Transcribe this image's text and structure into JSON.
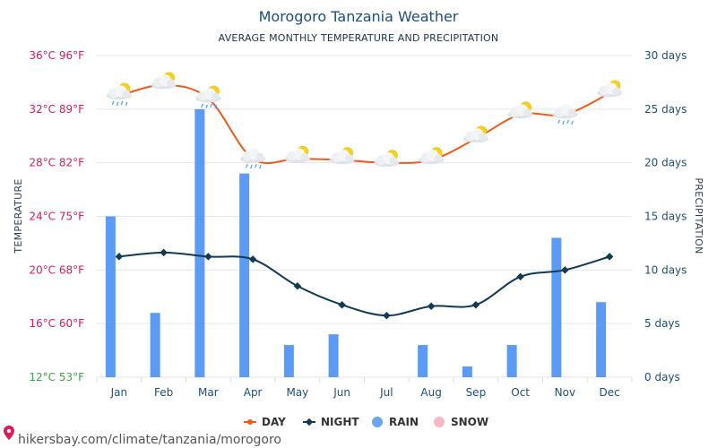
{
  "chart_data": {
    "type": "bar+line",
    "title": "Morogoro Tanzania Weather",
    "subtitle": "AVERAGE MONTHLY TEMPERATURE AND PRECIPITATION",
    "ylabel_left": "TEMPERATURE",
    "ylabel_right": "PRECIPITATION",
    "categories": [
      "Jan",
      "Feb",
      "Mar",
      "Apr",
      "May",
      "Jun",
      "Jul",
      "Aug",
      "Sep",
      "Oct",
      "Nov",
      "Dec"
    ],
    "y_left_ticks": [
      {
        "value": 36,
        "label": "36°C 96°F",
        "color": "#e0195a"
      },
      {
        "value": 32,
        "label": "32°C 89°F",
        "color": "#e0195a"
      },
      {
        "value": 28,
        "label": "28°C 82°F",
        "color": "#e0195a"
      },
      {
        "value": 24,
        "label": "24°C 75°F",
        "color": "#e0195a"
      },
      {
        "value": 20,
        "label": "20°C 68°F",
        "color": "#e0195a"
      },
      {
        "value": 16,
        "label": "16°C 60°F",
        "color": "#e0195a"
      },
      {
        "value": 12,
        "label": "12°C 53°F",
        "color": "#3aa845"
      }
    ],
    "y_right_ticks": [
      {
        "value": 30,
        "label": "30 days"
      },
      {
        "value": 25,
        "label": "25 days"
      },
      {
        "value": 20,
        "label": "20 days"
      },
      {
        "value": 15,
        "label": "15 days"
      },
      {
        "value": 10,
        "label": "10 days"
      },
      {
        "value": 5,
        "label": "5 days"
      },
      {
        "value": 0,
        "label": "0 days"
      }
    ],
    "ylim_left": [
      12,
      36
    ],
    "ylim_right": [
      0,
      30
    ],
    "series": [
      {
        "name": "DAY",
        "kind": "line",
        "color": "#f05a1a",
        "values": [
          33.0,
          33.8,
          32.8,
          28.3,
          28.3,
          28.2,
          28.0,
          28.2,
          29.8,
          31.6,
          31.6,
          33.2
        ]
      },
      {
        "name": "NIGHT",
        "kind": "line",
        "color": "#123a52",
        "values": [
          21.0,
          21.3,
          21.0,
          20.8,
          18.8,
          17.4,
          16.6,
          17.3,
          17.4,
          19.5,
          20.0,
          21.0
        ]
      },
      {
        "name": "RAIN",
        "kind": "bar",
        "color": "#5b9bf5",
        "values": [
          15,
          6,
          25,
          19,
          3,
          4,
          0,
          3,
          1,
          3,
          13,
          7
        ]
      },
      {
        "name": "SNOW",
        "kind": "bar",
        "color": "#f7b3c2",
        "values": [
          0,
          0,
          0,
          0,
          0,
          0,
          0,
          0,
          0,
          0,
          0,
          0
        ]
      }
    ],
    "weather_icons": [
      "sun-cloud-rain-icon",
      "sun-cloud-icon",
      "sun-cloud-rain-icon",
      "cloud-rain-icon",
      "sun-cloud-icon",
      "sun-cloud-icon",
      "sun-cloud-icon",
      "sun-cloud-icon",
      "sun-cloud-icon",
      "sun-cloud-icon",
      "cloud-rain-icon",
      "sun-cloud-icon"
    ],
    "legend": [
      {
        "name": "DAY",
        "color": "#f05a1a",
        "marker": "line-dot"
      },
      {
        "name": "NIGHT",
        "color": "#123a52",
        "marker": "line-diamond"
      },
      {
        "name": "RAIN",
        "color": "#6aa6f2",
        "marker": "circle"
      },
      {
        "name": "SNOW",
        "color": "#f7b9c6",
        "marker": "circle"
      }
    ],
    "legend_position": "bottom-center",
    "grid": true
  },
  "footer": {
    "text": "hikersbay.com/climate/tanzania/morogoro",
    "pin_color": "#e0195a"
  }
}
